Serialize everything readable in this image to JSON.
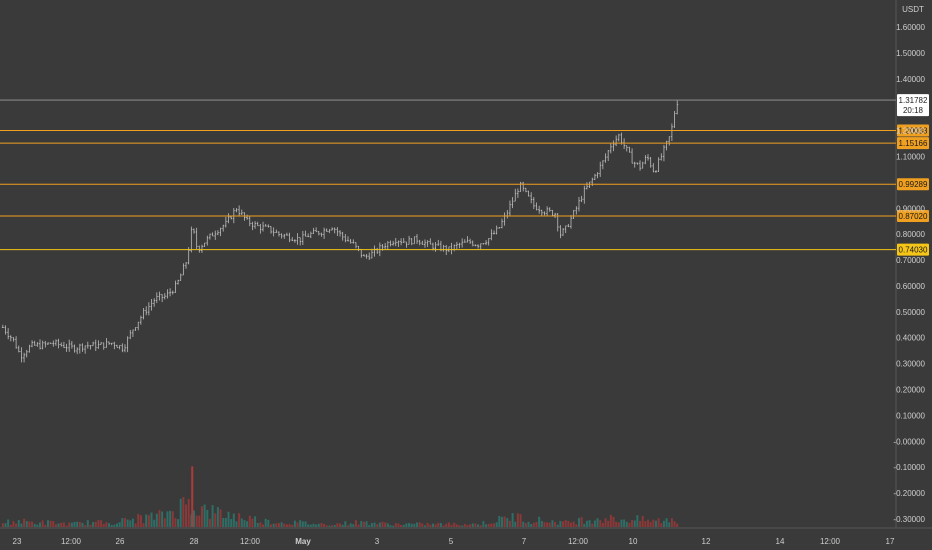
{
  "chart_data": {
    "type": "candlestick",
    "currency": "USDT",
    "title": "",
    "grid": false,
    "ylim": [
      -0.34,
      1.68
    ],
    "y_ticks": [
      "1.60000",
      "1.50000",
      "1.40000",
      "1.20000",
      "1.10000",
      "0.90000",
      "0.80000",
      "0.70000",
      "0.60000",
      "0.50000",
      "0.40000",
      "0.30000",
      "0.20000",
      "0.10000",
      "-0.00000",
      "-0.10000",
      "-0.20000",
      "-0.30000"
    ],
    "y_tick_values": [
      1.6,
      1.5,
      1.4,
      1.2,
      1.1,
      0.9,
      0.8,
      0.7,
      0.6,
      0.5,
      0.4,
      0.3,
      0.2,
      0.1,
      0.0,
      -0.1,
      -0.2,
      -0.3
    ],
    "x_ticks": [
      "23",
      "12:00",
      "26",
      "28",
      "12:00",
      "May",
      "3",
      "5",
      "7",
      "12:00",
      "10",
      "12",
      "14",
      "12:00",
      "17"
    ],
    "current_price": {
      "value": "1.31782",
      "countdown": "20:18",
      "price": 1.31782
    },
    "levels": [
      {
        "label": "1.20038",
        "value": 1.20038,
        "color": "#f0a020",
        "start_day": 14.45
      },
      {
        "label": "1.15166",
        "value": 1.15166,
        "color": "#f0a020",
        "start_day": 14.45
      },
      {
        "label": "0.99289",
        "value": 0.99289,
        "color": "#f0a020",
        "start_day": 12.0
      },
      {
        "label": "0.87020",
        "value": 0.8702,
        "color": "#f0a020",
        "start_day": 9.3
      },
      {
        "label": "0.74030",
        "value": 0.7403,
        "color": "#f5c518",
        "start_day": 22.6
      }
    ],
    "price_path": [
      [
        22.6,
        0.44
      ],
      [
        22.9,
        0.39
      ],
      [
        23.1,
        0.33
      ],
      [
        23.4,
        0.37
      ],
      [
        23.7,
        0.37
      ],
      [
        24.0,
        0.38
      ],
      [
        24.3,
        0.37
      ],
      [
        24.6,
        0.36
      ],
      [
        24.9,
        0.37
      ],
      [
        25.3,
        0.37
      ],
      [
        25.7,
        0.38
      ],
      [
        26.0,
        0.36
      ],
      [
        26.3,
        0.44
      ],
      [
        26.6,
        0.5
      ],
      [
        26.9,
        0.55
      ],
      [
        27.2,
        0.56
      ],
      [
        27.5,
        0.6
      ],
      [
        27.8,
        0.7
      ],
      [
        27.95,
        0.83
      ],
      [
        28.1,
        0.74
      ],
      [
        28.3,
        0.77
      ],
      [
        28.6,
        0.81
      ],
      [
        28.9,
        0.84
      ],
      [
        29.2,
        0.9
      ],
      [
        29.5,
        0.85
      ],
      [
        29.8,
        0.83
      ],
      [
        30.1,
        0.82
      ],
      [
        30.4,
        0.8
      ],
      [
        30.7,
        0.79
      ],
      [
        31.0,
        0.78
      ],
      [
        31.3,
        0.8
      ],
      [
        31.6,
        0.81
      ],
      [
        31.9,
        0.83
      ],
      [
        32.2,
        0.79
      ],
      [
        32.5,
        0.76
      ],
      [
        32.8,
        0.71
      ],
      [
        33.1,
        0.73
      ],
      [
        33.4,
        0.76
      ],
      [
        33.7,
        0.78
      ],
      [
        34.0,
        0.77
      ],
      [
        34.3,
        0.78
      ],
      [
        34.6,
        0.76
      ],
      [
        34.9,
        0.75
      ],
      [
        35.2,
        0.74
      ],
      [
        35.5,
        0.76
      ],
      [
        35.8,
        0.77
      ],
      [
        36.0,
        0.76
      ],
      [
        36.3,
        0.78
      ],
      [
        36.6,
        0.82
      ],
      [
        36.8,
        0.87
      ],
      [
        37.0,
        0.93
      ],
      [
        37.2,
        0.99
      ],
      [
        37.4,
        0.95
      ],
      [
        37.6,
        0.91
      ],
      [
        37.9,
        0.89
      ],
      [
        38.2,
        0.88
      ],
      [
        38.35,
        0.8
      ],
      [
        38.5,
        0.82
      ],
      [
        38.8,
        0.9
      ],
      [
        39.0,
        0.96
      ],
      [
        39.3,
        1.02
      ],
      [
        39.6,
        1.09
      ],
      [
        39.8,
        1.15
      ],
      [
        40.0,
        1.18
      ],
      [
        40.2,
        1.13
      ],
      [
        40.4,
        1.08
      ],
      [
        40.6,
        1.06
      ],
      [
        40.8,
        1.1
      ],
      [
        41.0,
        1.04
      ],
      [
        41.2,
        1.1
      ],
      [
        41.45,
        1.18
      ],
      [
        41.55,
        1.24
      ],
      [
        41.6,
        1.3
      ],
      [
        41.7,
        1.32
      ]
    ],
    "volume_profile": [
      [
        22.6,
        0.03
      ],
      [
        23.0,
        0.04
      ],
      [
        23.5,
        0.03
      ],
      [
        24.0,
        0.03
      ],
      [
        24.5,
        0.02
      ],
      [
        25.0,
        0.03
      ],
      [
        25.5,
        0.03
      ],
      [
        26.0,
        0.04
      ],
      [
        26.5,
        0.06
      ],
      [
        27.0,
        0.07
      ],
      [
        27.5,
        0.12
      ],
      [
        27.8,
        0.16
      ],
      [
        27.95,
        0.18
      ],
      [
        28.1,
        0.12
      ],
      [
        28.5,
        0.1
      ],
      [
        29.0,
        0.08
      ],
      [
        29.5,
        0.06
      ],
      [
        30.0,
        0.04
      ],
      [
        30.5,
        0.03
      ],
      [
        31.0,
        0.03
      ],
      [
        31.5,
        0.02
      ],
      [
        32.0,
        0.02
      ],
      [
        32.5,
        0.03
      ],
      [
        33.0,
        0.03
      ],
      [
        33.5,
        0.02
      ],
      [
        34.0,
        0.02
      ],
      [
        34.5,
        0.02
      ],
      [
        35.0,
        0.02
      ],
      [
        35.5,
        0.02
      ],
      [
        36.0,
        0.02
      ],
      [
        36.5,
        0.04
      ],
      [
        37.0,
        0.07
      ],
      [
        37.5,
        0.05
      ],
      [
        38.0,
        0.04
      ],
      [
        38.5,
        0.03
      ],
      [
        39.0,
        0.05
      ],
      [
        39.5,
        0.06
      ],
      [
        40.0,
        0.05
      ],
      [
        40.5,
        0.05
      ],
      [
        41.0,
        0.04
      ],
      [
        41.5,
        0.05
      ],
      [
        41.7,
        0.04
      ]
    ],
    "volume_spike": {
      "day": 27.95,
      "value": 0.47
    }
  }
}
